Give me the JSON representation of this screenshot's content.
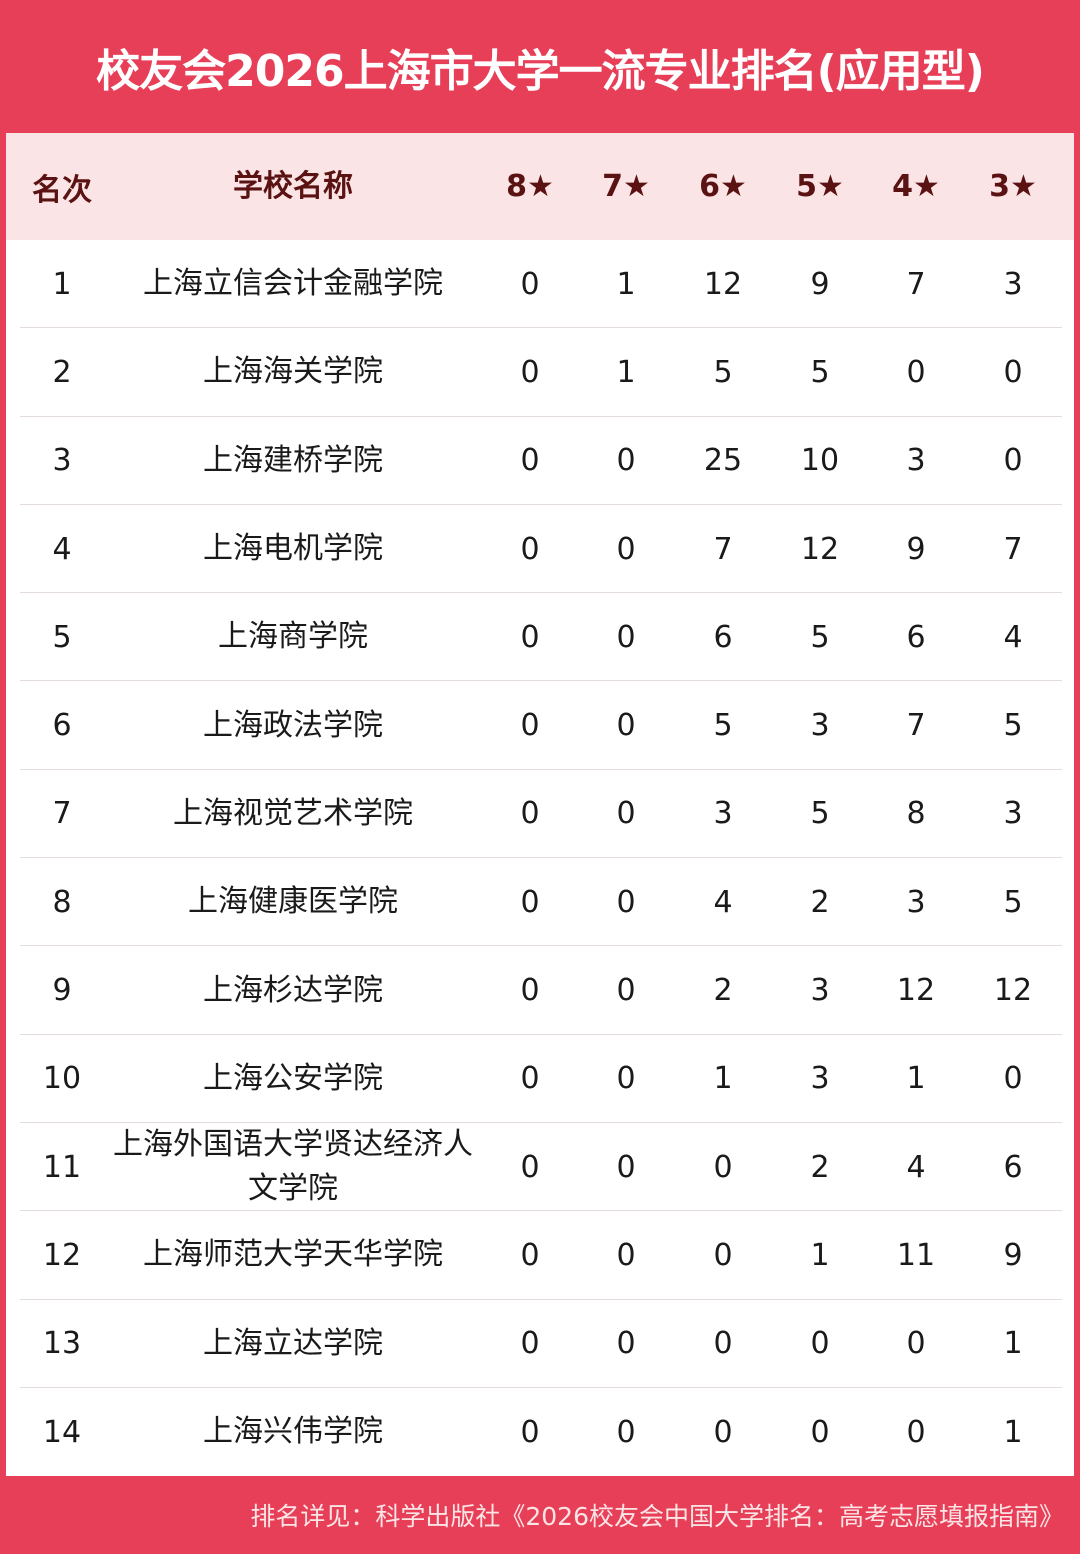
{
  "title": "校友会2026上海市大学一流专业排名(应用型)",
  "colors": {
    "accent": "#E83F58",
    "header_bg": "#FBE4E5",
    "header_text": "#5A1212"
  },
  "table": {
    "headers": [
      "名次",
      "学校名称",
      "8★",
      "7★",
      "6★",
      "5★",
      "4★",
      "3★"
    ],
    "rows": [
      {
        "rank": "1",
        "name": "上海立信会计金融学院",
        "stars": [
          "0",
          "1",
          "12",
          "9",
          "7",
          "3"
        ]
      },
      {
        "rank": "2",
        "name": "上海海关学院",
        "stars": [
          "0",
          "1",
          "5",
          "5",
          "0",
          "0"
        ]
      },
      {
        "rank": "3",
        "name": "上海建桥学院",
        "stars": [
          "0",
          "0",
          "25",
          "10",
          "3",
          "0"
        ]
      },
      {
        "rank": "4",
        "name": "上海电机学院",
        "stars": [
          "0",
          "0",
          "7",
          "12",
          "9",
          "7"
        ]
      },
      {
        "rank": "5",
        "name": "上海商学院",
        "stars": [
          "0",
          "0",
          "6",
          "5",
          "6",
          "4"
        ]
      },
      {
        "rank": "6",
        "name": "上海政法学院",
        "stars": [
          "0",
          "0",
          "5",
          "3",
          "7",
          "5"
        ]
      },
      {
        "rank": "7",
        "name": "上海视觉艺术学院",
        "stars": [
          "0",
          "0",
          "3",
          "5",
          "8",
          "3"
        ]
      },
      {
        "rank": "8",
        "name": "上海健康医学院",
        "stars": [
          "0",
          "0",
          "4",
          "2",
          "3",
          "5"
        ]
      },
      {
        "rank": "9",
        "name": "上海杉达学院",
        "stars": [
          "0",
          "0",
          "2",
          "3",
          "12",
          "12"
        ]
      },
      {
        "rank": "10",
        "name": "上海公安学院",
        "stars": [
          "0",
          "0",
          "1",
          "3",
          "1",
          "0"
        ]
      },
      {
        "rank": "11",
        "name": "上海外国语大学贤达经济人文学院",
        "stars": [
          "0",
          "0",
          "0",
          "2",
          "4",
          "6"
        ]
      },
      {
        "rank": "12",
        "name": "上海师范大学天华学院",
        "stars": [
          "0",
          "0",
          "0",
          "1",
          "11",
          "9"
        ]
      },
      {
        "rank": "13",
        "name": "上海立达学院",
        "stars": [
          "0",
          "0",
          "0",
          "0",
          "0",
          "1"
        ]
      },
      {
        "rank": "14",
        "name": "上海兴伟学院",
        "stars": [
          "0",
          "0",
          "0",
          "0",
          "0",
          "1"
        ]
      }
    ]
  },
  "footer": "排名详见：科学出版社《2026校友会中国大学排名：高考志愿填报指南》"
}
